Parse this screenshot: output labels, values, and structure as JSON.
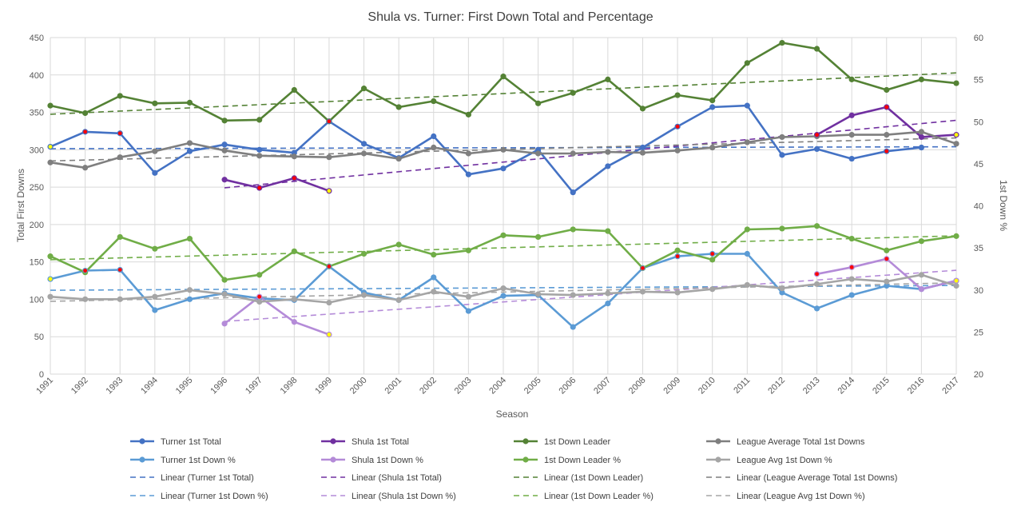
{
  "chart_data": {
    "type": "line",
    "title": "Shula vs. Turner: First Down Total and Percentage",
    "xlabel": "Season",
    "ylabel_left": "Total First Downs",
    "ylabel_right": "1st Down %",
    "categories": [
      "1991",
      "1992",
      "1993",
      "1994",
      "1995",
      "1996",
      "1997",
      "1998",
      "1999",
      "2000",
      "2001",
      "2002",
      "2003",
      "2004",
      "2005",
      "2006",
      "2007",
      "2008",
      "2009",
      "2010",
      "2011",
      "2012",
      "2013",
      "2014",
      "2015",
      "2016",
      "2017"
    ],
    "ylim_left": [
      0,
      450
    ],
    "yticks_left": [
      "0",
      "50",
      "100",
      "150",
      "200",
      "250",
      "300",
      "350",
      "400",
      "450"
    ],
    "ylim_right": [
      20,
      60
    ],
    "yticks_right": [
      "20",
      "25",
      "30",
      "35",
      "40",
      "45",
      "50",
      "55",
      "60"
    ],
    "grid": true,
    "legend_position": "bottom",
    "series": [
      {
        "name": "Turner 1st Total",
        "axis": "left",
        "color": "#4472C4",
        "trendColor": "#4472C4",
        "values": [
          304,
          324,
          322,
          269,
          298,
          307,
          300,
          296,
          338,
          308,
          289,
          318,
          267,
          275,
          300,
          243,
          278,
          303,
          331,
          357,
          359,
          293,
          301,
          288,
          298,
          303,
          null
        ]
      },
      {
        "name": "Shula 1st Total",
        "axis": "left",
        "color": "#7030A0",
        "trendColor": "#7030A0",
        "values": [
          null,
          null,
          null,
          null,
          null,
          260,
          249,
          262,
          245,
          null,
          null,
          null,
          null,
          null,
          null,
          null,
          null,
          null,
          null,
          null,
          null,
          null,
          320,
          346,
          357,
          317,
          320
        ]
      },
      {
        "name": "1st Down Leader",
        "axis": "left",
        "color": "#548235",
        "trendColor": "#548235",
        "values": [
          359,
          349,
          372,
          362,
          363,
          339,
          340,
          380,
          338,
          382,
          357,
          365,
          347,
          398,
          362,
          376,
          394,
          355,
          373,
          366,
          416,
          443,
          435,
          394,
          380,
          394,
          389
        ]
      },
      {
        "name": "League Average Total 1st Downs",
        "axis": "left",
        "color": "#7F7F7F",
        "trendColor": "#7F7F7F",
        "values": [
          283,
          276,
          290,
          298,
          309,
          299,
          292,
          291,
          290,
          295,
          288,
          303,
          295,
          300,
          295,
          295,
          297,
          296,
          299,
          303,
          310,
          317,
          318,
          320,
          320,
          324,
          308
        ]
      },
      {
        "name": "Turner 1st Down %",
        "axis": "right",
        "color": "#5B9BD5",
        "trendColor": "#5B9BD5",
        "values": [
          31.3,
          32.3,
          32.4,
          27.6,
          28.9,
          29.6,
          29.0,
          28.8,
          32.8,
          29.7,
          28.8,
          31.5,
          27.5,
          29.3,
          29.4,
          25.6,
          28.4,
          32.6,
          34.0,
          34.3,
          34.3,
          29.7,
          27.8,
          29.4,
          30.5,
          30.1,
          31.1
        ]
      },
      {
        "name": "Shula 1st Down %",
        "axis": "right",
        "color": "#B48BD8",
        "trendColor": "#B48BD8",
        "values": [
          null,
          null,
          null,
          null,
          null,
          26.0,
          29.2,
          26.2,
          24.7,
          null,
          null,
          null,
          null,
          null,
          null,
          null,
          null,
          null,
          null,
          null,
          null,
          null,
          31.9,
          32.7,
          33.7,
          30.1,
          31.1
        ]
      },
      {
        "name": "1st Down Leader %",
        "axis": "right",
        "color": "#70AD47",
        "trendColor": "#70AD47",
        "values": [
          34.0,
          32.1,
          36.3,
          34.9,
          36.1,
          31.2,
          31.8,
          34.6,
          32.8,
          34.3,
          35.4,
          34.2,
          34.7,
          36.5,
          36.3,
          37.2,
          37.0,
          32.6,
          34.7,
          33.6,
          37.2,
          37.3,
          37.6,
          36.1,
          34.7,
          35.8,
          36.4
        ]
      },
      {
        "name": "League Avg 1st Down %",
        "axis": "right",
        "color": "#A5A5A5",
        "trendColor": "#A5A5A5",
        "values": [
          29.2,
          28.9,
          28.9,
          29.2,
          30.0,
          29.5,
          28.6,
          28.9,
          28.5,
          29.4,
          28.8,
          29.8,
          29.2,
          30.2,
          29.5,
          29.4,
          29.6,
          29.8,
          29.7,
          30.1,
          30.6,
          30.2,
          30.7,
          31.3,
          31.0,
          31.8,
          30.5
        ]
      }
    ],
    "trend_labels": [
      "Linear (Turner 1st Total)",
      "Linear (Shula 1st Total)",
      "Linear (1st Down Leader)",
      "Linear (League Average Total 1st Downs)",
      "Linear (Turner 1st Down %)",
      "Linear (Shula 1st Down %)",
      "Linear (1st Down Leader %)",
      "Linear (League Avg 1st Down %)"
    ],
    "highlight_markers": [
      {
        "series": 0,
        "index": 0,
        "color": "#FFFF00"
      },
      {
        "series": 0,
        "index": 1,
        "color": "#FF0000"
      },
      {
        "series": 0,
        "index": 2,
        "color": "#FF0000"
      },
      {
        "series": 0,
        "index": 8,
        "color": "#FF0000"
      },
      {
        "series": 0,
        "index": 18,
        "color": "#FF0000"
      },
      {
        "series": 0,
        "index": 24,
        "color": "#FF0000"
      },
      {
        "series": 1,
        "index": 6,
        "color": "#FF0000"
      },
      {
        "series": 1,
        "index": 7,
        "color": "#FF0000"
      },
      {
        "series": 1,
        "index": 8,
        "color": "#FFFF00"
      },
      {
        "series": 1,
        "index": 17,
        "color": "#FF0000"
      },
      {
        "series": 1,
        "index": 19,
        "color": "#FF0000"
      },
      {
        "series": 1,
        "index": 22,
        "color": "#FF0000"
      },
      {
        "series": 1,
        "index": 24,
        "color": "#FF0000"
      },
      {
        "series": 1,
        "index": 26,
        "color": "#FFFF00"
      },
      {
        "series": 4,
        "index": 0,
        "color": "#FFFF00"
      },
      {
        "series": 4,
        "index": 1,
        "color": "#FF0000"
      },
      {
        "series": 4,
        "index": 2,
        "color": "#FF0000"
      },
      {
        "series": 4,
        "index": 8,
        "color": "#FF0000"
      },
      {
        "series": 4,
        "index": 17,
        "color": "#FF0000"
      },
      {
        "series": 4,
        "index": 18,
        "color": "#FF0000"
      },
      {
        "series": 4,
        "index": 19,
        "color": "#FF0000"
      },
      {
        "series": 5,
        "index": 6,
        "color": "#FF0000"
      },
      {
        "series": 5,
        "index": 8,
        "color": "#FFFF00"
      },
      {
        "series": 5,
        "index": 22,
        "color": "#FF0000"
      },
      {
        "series": 5,
        "index": 23,
        "color": "#FF0000"
      },
      {
        "series": 5,
        "index": 24,
        "color": "#FF0000"
      },
      {
        "series": 5,
        "index": 26,
        "color": "#FFFF00"
      }
    ]
  }
}
